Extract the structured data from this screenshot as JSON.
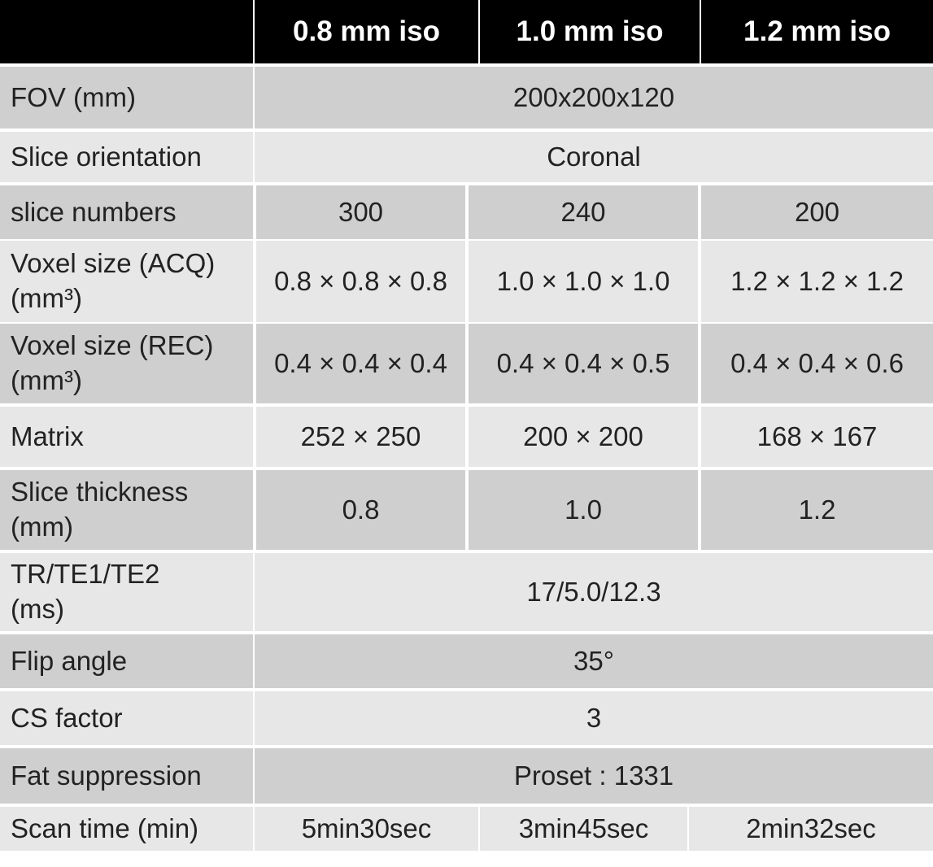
{
  "table": {
    "header": [
      "0.8 mm iso",
      "1.0 mm iso",
      "1.2 mm iso"
    ],
    "rows": [
      {
        "label": "FOV (mm)",
        "cells": [
          "200x200x120"
        ]
      },
      {
        "label": "Slice orientation",
        "cells": [
          "Coronal"
        ]
      },
      {
        "label": "slice numbers",
        "cells": [
          "300",
          "240",
          "200"
        ]
      },
      {
        "label": "Voxel size (ACQ)\n(mm³)",
        "cells": [
          "0.8 × 0.8 × 0.8",
          "1.0 × 1.0 × 1.0",
          "1.2 × 1.2 × 1.2"
        ]
      },
      {
        "label": "Voxel size (REC)\n(mm³)",
        "cells": [
          "0.4 × 0.4 × 0.4",
          "0.4 × 0.4 × 0.5",
          "0.4 × 0.4 × 0.6"
        ]
      },
      {
        "label": "Matrix",
        "cells": [
          "252 × 250",
          "200 × 200",
          "168 × 167"
        ]
      },
      {
        "label": "Slice thickness\n(mm)",
        "cells": [
          "0.8",
          "1.0",
          "1.2"
        ]
      },
      {
        "label": "TR/TE1/TE2\n(ms)",
        "cells": [
          "17/5.0/12.3"
        ]
      },
      {
        "label": "Flip angle",
        "cells": [
          "35°"
        ]
      },
      {
        "label": "CS factor",
        "cells": [
          "3"
        ]
      },
      {
        "label": "Fat suppression",
        "cells": [
          "Proset : 1331"
        ]
      },
      {
        "label": "Scan time (min)",
        "cells": [
          "5min30sec",
          "3min45sec",
          "2min32sec"
        ]
      }
    ]
  }
}
